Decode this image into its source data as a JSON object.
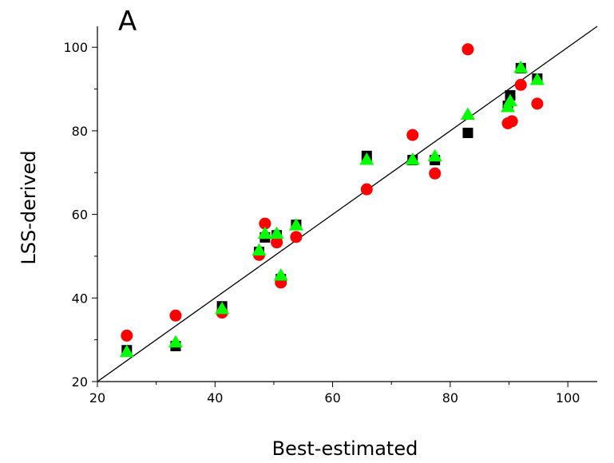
{
  "chart_data": {
    "type": "scatter",
    "panel_label": "A",
    "xlabel": "Best-estimated",
    "ylabel": "LSS-derived",
    "xlim": [
      20,
      105
    ],
    "ylim": [
      20,
      105
    ],
    "x_ticks": [
      20,
      40,
      60,
      80,
      100
    ],
    "y_ticks": [
      20,
      40,
      60,
      80,
      100
    ],
    "grid": false,
    "legend": "none",
    "reference_line": {
      "x": [
        20,
        105
      ],
      "y": [
        20,
        105
      ],
      "color": "#000000"
    },
    "series": [
      {
        "marker": "square",
        "color": "#000000",
        "points": [
          [
            25,
            27.5
          ],
          [
            33.3,
            28.5
          ],
          [
            41.2,
            38
          ],
          [
            47.5,
            51
          ],
          [
            48.5,
            54.5
          ],
          [
            50.5,
            55
          ],
          [
            51.2,
            44.5
          ],
          [
            53.8,
            57.5
          ],
          [
            65.8,
            74
          ],
          [
            73.6,
            73
          ],
          [
            77.4,
            73
          ],
          [
            83,
            79.5
          ],
          [
            89.8,
            86
          ],
          [
            90.2,
            88.5
          ],
          [
            92,
            95
          ],
          [
            94.8,
            92.5
          ]
        ]
      },
      {
        "marker": "circle",
        "color": "#ff0000",
        "points": [
          [
            25,
            31
          ],
          [
            33.3,
            35.8
          ],
          [
            41.2,
            36.5
          ],
          [
            47.5,
            50.3
          ],
          [
            48.5,
            57.8
          ],
          [
            50.5,
            53.3
          ],
          [
            51.2,
            43.7
          ],
          [
            53.8,
            54.6
          ],
          [
            65.8,
            66
          ],
          [
            73.6,
            79
          ],
          [
            77.4,
            69.8
          ],
          [
            83,
            99.5
          ],
          [
            89.8,
            81.8
          ],
          [
            90.5,
            82.3
          ],
          [
            92,
            91
          ],
          [
            94.8,
            86.5
          ]
        ]
      },
      {
        "marker": "triangle",
        "color": "#00ff00",
        "points": [
          [
            25,
            27.2
          ],
          [
            33.3,
            29.5
          ],
          [
            41.2,
            37.5
          ],
          [
            47.5,
            51.5
          ],
          [
            48.5,
            55.5
          ],
          [
            50.5,
            55.5
          ],
          [
            51.2,
            45.5
          ],
          [
            53.8,
            57.5
          ],
          [
            65.8,
            73.2
          ],
          [
            73.6,
            73.2
          ],
          [
            77.4,
            74
          ],
          [
            83,
            84
          ],
          [
            89.8,
            85.8
          ],
          [
            90.2,
            87.2
          ],
          [
            92,
            95.2
          ],
          [
            94.8,
            92.3
          ]
        ]
      }
    ]
  }
}
